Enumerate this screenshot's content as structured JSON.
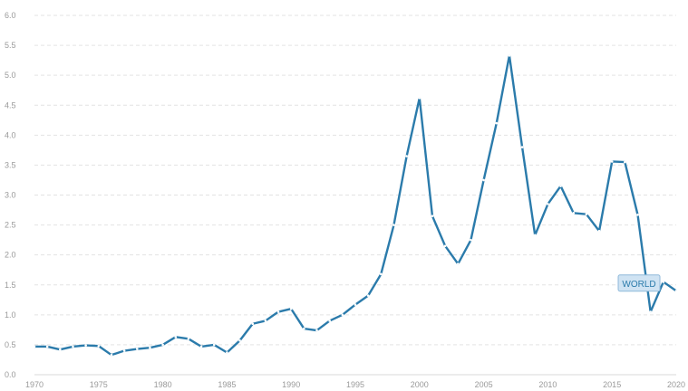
{
  "chart_data": {
    "type": "line",
    "title": "",
    "xlabel": "",
    "ylabel": "",
    "xlim": [
      1970,
      2020
    ],
    "ylim": [
      0,
      6
    ],
    "y_ticks": [
      "0.0",
      "0.5",
      "1.0",
      "1.5",
      "2.0",
      "2.5",
      "3.0",
      "3.5",
      "4.0",
      "4.5",
      "5.0",
      "5.5",
      "6.0"
    ],
    "x_ticks": [
      "1970",
      "1975",
      "1980",
      "1985",
      "1990",
      "1995",
      "2000",
      "2005",
      "2010",
      "2015",
      "2020"
    ],
    "grid": true,
    "colors": {
      "series": "#2b7bab",
      "label_bg": "#cfe3f3"
    },
    "series": [
      {
        "name": "WORLD",
        "x": [
          1970,
          1971,
          1972,
          1973,
          1974,
          1975,
          1976,
          1977,
          1978,
          1979,
          1980,
          1981,
          1982,
          1983,
          1984,
          1985,
          1986,
          1987,
          1988,
          1989,
          1990,
          1991,
          1992,
          1993,
          1994,
          1995,
          1996,
          1997,
          1998,
          1999,
          2000,
          2001,
          2002,
          2003,
          2004,
          2005,
          2006,
          2007,
          2008,
          2009,
          2010,
          2011,
          2012,
          2013,
          2014,
          2015,
          2016,
          2017,
          2018,
          2019,
          2020
        ],
        "values": [
          0.47,
          0.47,
          0.42,
          0.47,
          0.49,
          0.48,
          0.33,
          0.4,
          0.43,
          0.45,
          0.5,
          0.63,
          0.6,
          0.47,
          0.5,
          0.37,
          0.57,
          0.85,
          0.9,
          1.05,
          1.1,
          0.77,
          0.74,
          0.9,
          1.0,
          1.17,
          1.32,
          1.68,
          2.5,
          3.65,
          4.62,
          2.65,
          2.15,
          1.85,
          2.25,
          3.25,
          4.2,
          5.33,
          3.8,
          2.33,
          2.85,
          3.15,
          2.7,
          2.68,
          2.4,
          3.56,
          3.55,
          2.67,
          1.05,
          1.55,
          1.4
        ]
      }
    ]
  }
}
